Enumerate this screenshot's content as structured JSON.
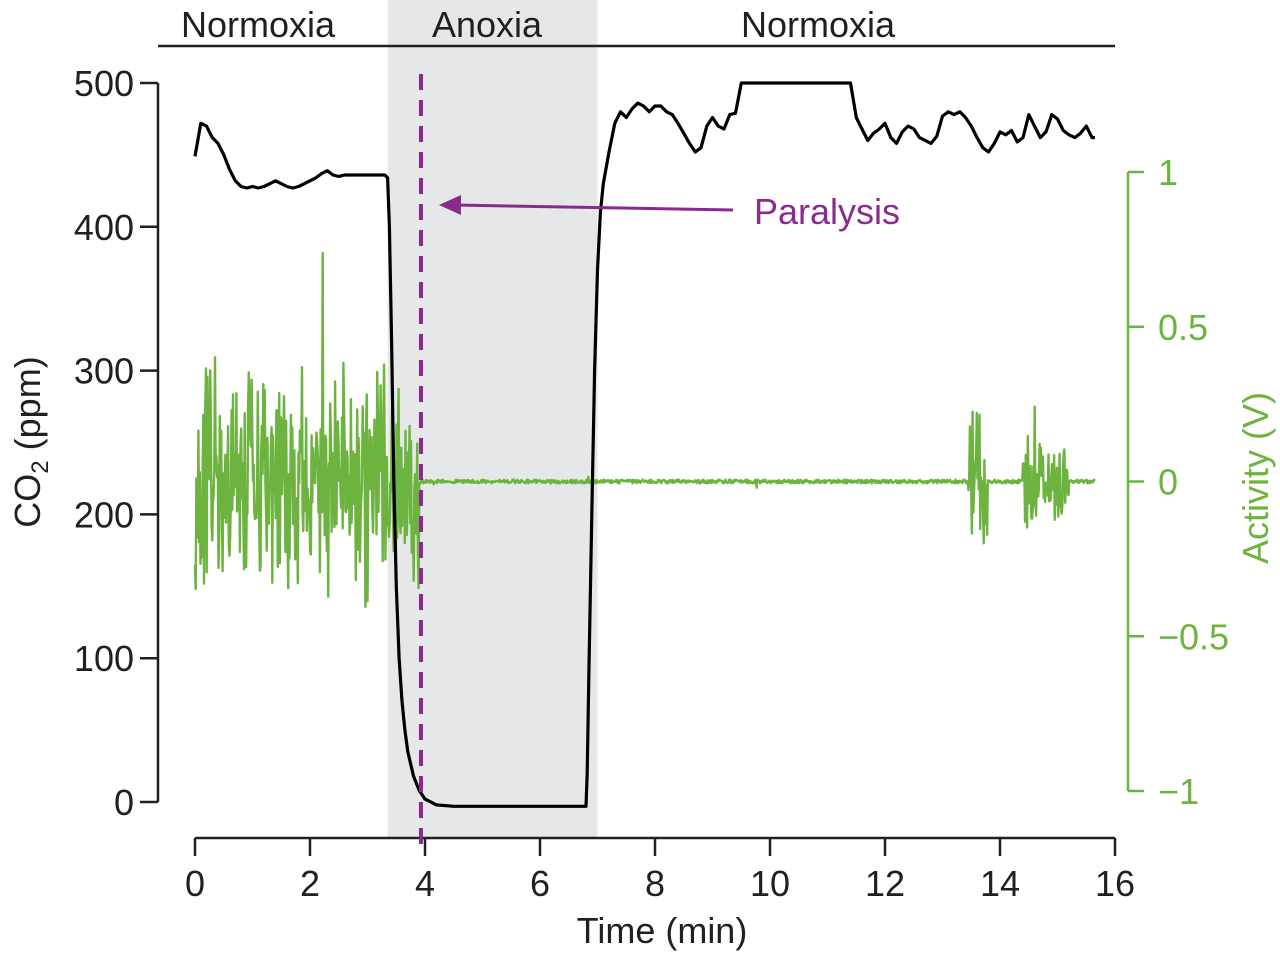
{
  "chart_data": {
    "type": "line",
    "title": "",
    "xlabel": "Time (min)",
    "ylabel_left": {
      "main": "CO",
      "sub": "2",
      "rest": " (ppm)"
    },
    "ylabel_right": "Activity (V)",
    "xlim": [
      0,
      16
    ],
    "ylim_left": [
      0,
      500
    ],
    "ylim_right": [
      -1,
      1
    ],
    "x_ticks": [
      0,
      2,
      4,
      6,
      8,
      10,
      12,
      14,
      16
    ],
    "x_tick_labels": [
      "0",
      "2",
      "4",
      "6",
      "8",
      "10",
      "12",
      "14",
      "16"
    ],
    "y_left_ticks": [
      0,
      100,
      200,
      300,
      400,
      500
    ],
    "y_left_tick_labels": [
      "0",
      "100",
      "200",
      "300",
      "400",
      "500"
    ],
    "y_right_ticks": [
      -1,
      -0.5,
      0,
      0.5,
      1
    ],
    "y_right_tick_labels": [
      "−1",
      "−0.5",
      "0",
      "0.5",
      "1"
    ],
    "grid": false,
    "phases": [
      {
        "label": "Normoxia",
        "start": 0,
        "end": 3.35
      },
      {
        "label": "Anoxia",
        "start": 3.35,
        "end": 7.0
      },
      {
        "label": "Normoxia",
        "start": 7.0,
        "end": 16
      }
    ],
    "shaded_region": {
      "start": 3.35,
      "end": 7.0,
      "color": "#e6e7e8"
    },
    "annotation": {
      "label": "Paralysis",
      "x": 3.93,
      "text_x": 9.5,
      "text_y": 412,
      "color": "#8a2a8f"
    },
    "series": [
      {
        "name": "CO2",
        "axis": "left",
        "color": "#000000",
        "x": [
          0,
          0.1,
          0.2,
          0.3,
          0.4,
          0.5,
          0.6,
          0.7,
          0.8,
          0.9,
          1.0,
          1.1,
          1.2,
          1.3,
          1.4,
          1.5,
          1.6,
          1.7,
          1.8,
          1.9,
          2.0,
          2.1,
          2.2,
          2.3,
          2.4,
          2.5,
          2.6,
          2.7,
          2.8,
          2.9,
          3.0,
          3.1,
          3.2,
          3.3,
          3.35,
          3.38,
          3.42,
          3.46,
          3.5,
          3.55,
          3.6,
          3.65,
          3.7,
          3.8,
          3.9,
          4.0,
          4.2,
          4.5,
          5.0,
          5.5,
          6.0,
          6.5,
          6.8,
          6.82,
          6.85,
          6.9,
          6.95,
          7.0,
          7.05,
          7.1,
          7.2,
          7.3,
          7.4,
          7.5,
          7.6,
          7.7,
          7.8,
          7.9,
          8.0,
          8.1,
          8.2,
          8.3,
          8.4,
          8.5,
          8.6,
          8.7,
          8.8,
          8.9,
          9.0,
          9.1,
          9.2,
          9.3,
          9.4,
          9.5,
          9.6,
          9.7,
          9.8,
          9.9,
          10.0,
          10.1,
          10.2,
          10.3,
          10.4,
          10.5,
          10.6,
          10.65,
          10.7,
          10.8,
          11.0,
          11.2,
          11.4,
          11.5,
          11.55,
          11.6,
          11.7,
          11.8,
          11.9,
          12.0,
          12.1,
          12.2,
          12.3,
          12.4,
          12.5,
          12.6,
          12.7,
          12.8,
          12.9,
          13.0,
          13.1,
          13.2,
          13.3,
          13.4,
          13.5,
          13.6,
          13.7,
          13.8,
          13.9,
          14.0,
          14.1,
          14.2,
          14.3,
          14.4,
          14.5,
          14.6,
          14.7,
          14.8,
          14.9,
          15.0,
          15.1,
          15.2,
          15.3,
          15.4,
          15.5,
          15.6,
          15.65
        ],
        "y": [
          449,
          472,
          470,
          462,
          458,
          450,
          440,
          432,
          428,
          427,
          428,
          427,
          428,
          430,
          432,
          430,
          428,
          427,
          428,
          430,
          432,
          434,
          437,
          439,
          436,
          435,
          436,
          436,
          436,
          436,
          436,
          436,
          436,
          436,
          434,
          400,
          320,
          220,
          150,
          100,
          70,
          50,
          35,
          18,
          8,
          2,
          -2,
          -3,
          -3,
          -3,
          -3,
          -3,
          -3,
          20,
          90,
          200,
          300,
          370,
          410,
          430,
          452,
          472,
          480,
          476,
          482,
          486,
          484,
          480,
          484,
          484,
          480,
          478,
          472,
          465,
          458,
          452,
          455,
          470,
          476,
          470,
          468,
          478,
          479,
          500,
          500,
          500,
          500,
          500,
          500,
          500,
          500,
          500,
          500,
          500,
          500,
          500,
          500,
          500,
          500,
          500,
          500,
          476,
          472,
          468,
          460,
          465,
          468,
          472,
          462,
          458,
          466,
          470,
          468,
          462,
          460,
          458,
          463,
          477,
          480,
          478,
          480,
          476,
          470,
          462,
          455,
          452,
          458,
          466,
          464,
          467,
          459,
          462,
          478,
          470,
          462,
          466,
          478,
          475,
          467,
          464,
          462,
          465,
          470,
          462,
          462
        ]
      },
      {
        "name": "Activity",
        "axis": "right",
        "color": "#6db33f",
        "generated": true,
        "active_segments": [
          {
            "start": 0.0,
            "end": 3.9,
            "amplitude": 0.42
          },
          {
            "start": 13.45,
            "end": 13.8,
            "amplitude": 0.28
          },
          {
            "start": 14.4,
            "end": 15.2,
            "amplitude": 0.18
          }
        ],
        "quiet_level": 0,
        "xlim": [
          0,
          15.65
        ]
      }
    ]
  }
}
